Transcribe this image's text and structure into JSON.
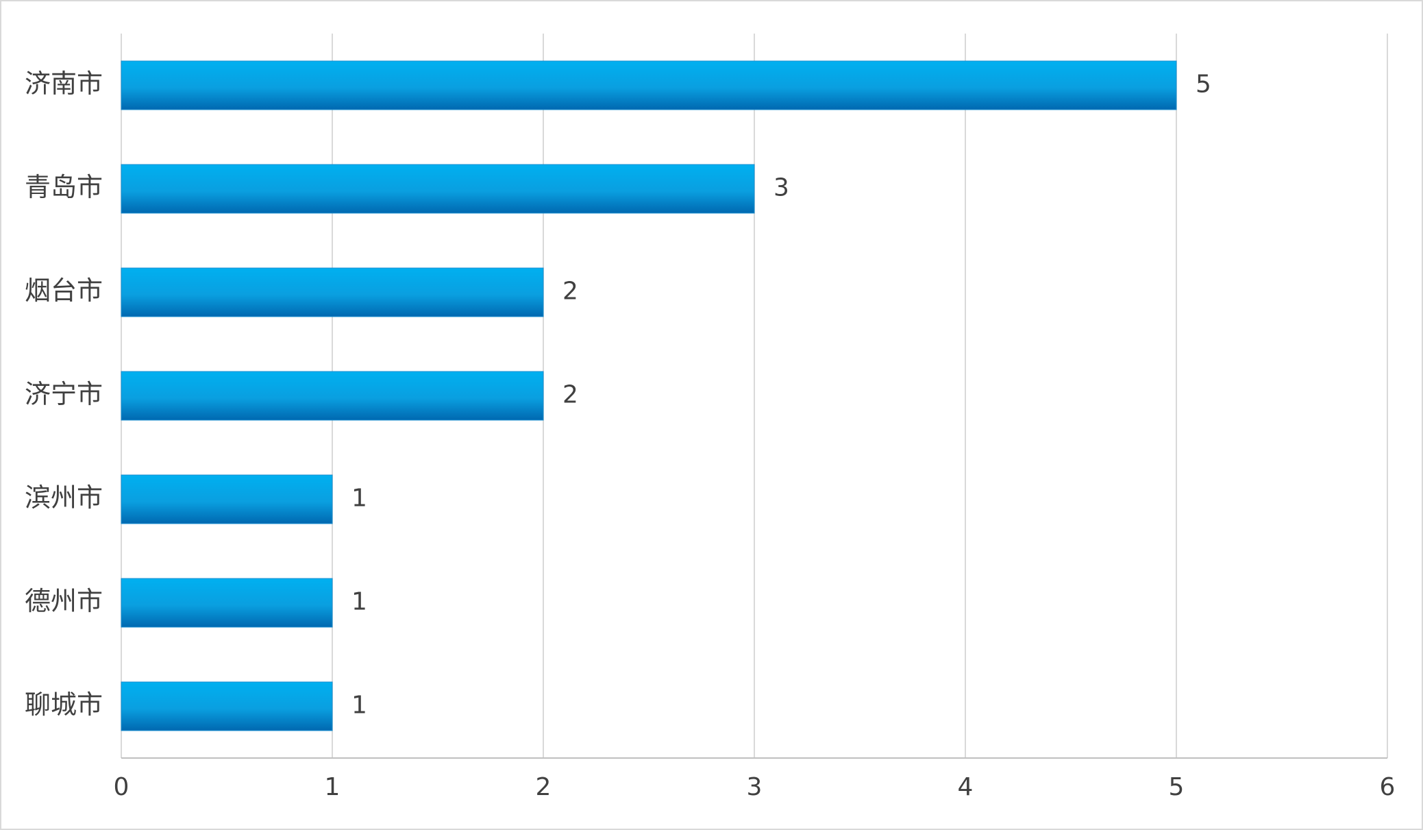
{
  "chart_data": {
    "type": "bar",
    "orientation": "horizontal",
    "categories": [
      "济南市",
      "青岛市",
      "烟台市",
      "济宁市",
      "滨州市",
      "德州市",
      "聊城市"
    ],
    "values": [
      5,
      3,
      2,
      2,
      1,
      1,
      1
    ],
    "color": "#0a9fe0",
    "xlim": [
      0,
      6
    ],
    "xticks": [
      0,
      1,
      2,
      3,
      4,
      5,
      6
    ],
    "grid": true
  }
}
